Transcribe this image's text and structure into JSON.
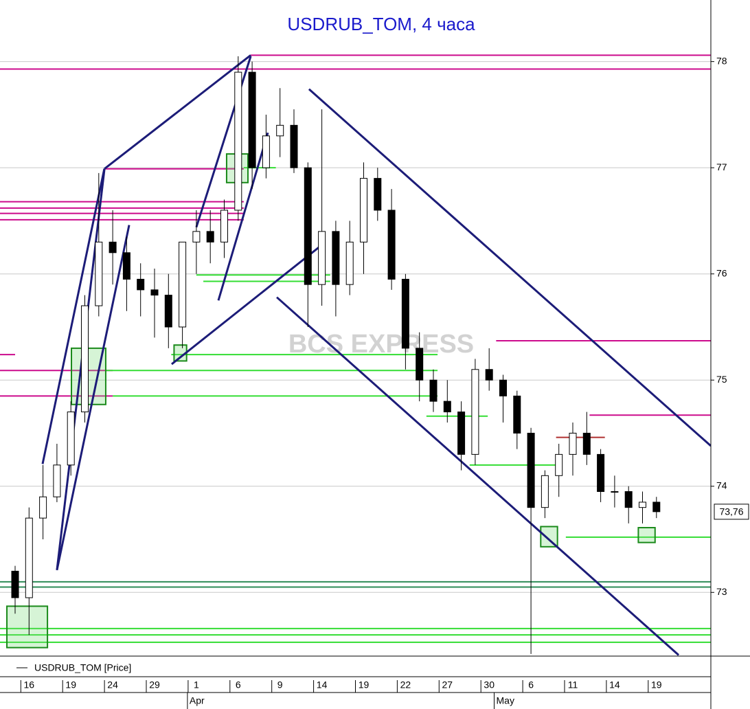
{
  "chart_data": {
    "type": "candlestick",
    "title": "USDRUB_TOM, 4 часа",
    "watermark": "BCS EXPRESS",
    "categories": [
      null,
      "16",
      null,
      null,
      "19",
      null,
      null,
      "24",
      null,
      null,
      "29",
      null,
      null,
      "1",
      null,
      null,
      "6",
      null,
      null,
      "9",
      null,
      null,
      "14",
      null,
      null,
      "19",
      null,
      null,
      "22",
      null,
      null,
      "27",
      null,
      null,
      "30",
      null,
      null,
      "6",
      null,
      null,
      "11",
      null,
      null,
      "14",
      null,
      null,
      "19"
    ],
    "month_categories": [
      null,
      null,
      null,
      null,
      null,
      null,
      null,
      null,
      null,
      null,
      null,
      null,
      null,
      "Apr",
      null,
      null,
      null,
      null,
      null,
      null,
      null,
      null,
      null,
      null,
      null,
      null,
      null,
      null,
      null,
      null,
      null,
      null,
      null,
      null,
      null,
      "May",
      null,
      null,
      null,
      null,
      null,
      null,
      null,
      null,
      null,
      null,
      null
    ],
    "series": [
      {
        "name": "USDRUB_TOM [Price]",
        "up_color": "#ffffff",
        "down_color": "#000000",
        "open": [
          73.2,
          72.95,
          73.7,
          73.9,
          74.2,
          74.7,
          75.7,
          76.3,
          76.2,
          75.95,
          75.85,
          75.8,
          75.5,
          76.3,
          76.4,
          76.3,
          76.6,
          77.9,
          77.0,
          77.3,
          77.4,
          77.0,
          75.9,
          76.4,
          75.9,
          76.3,
          76.9,
          76.6,
          75.95,
          75.3,
          75.0,
          74.8,
          74.7,
          74.3,
          75.1,
          75.0,
          74.85,
          74.5,
          73.8,
          74.1,
          74.3,
          74.5,
          74.3,
          73.95,
          73.95,
          73.8,
          73.85
        ],
        "high": [
          73.25,
          73.8,
          74.2,
          74.4,
          74.8,
          75.8,
          76.95,
          76.6,
          76.35,
          76.1,
          76.05,
          76.0,
          76.3,
          76.6,
          76.6,
          76.7,
          78.05,
          78.0,
          77.5,
          77.75,
          77.55,
          77.05,
          77.55,
          76.5,
          76.5,
          77.05,
          77.0,
          76.8,
          76.0,
          75.45,
          75.1,
          75.0,
          74.8,
          75.2,
          75.3,
          75.05,
          74.9,
          74.55,
          74.15,
          74.4,
          74.6,
          74.7,
          74.35,
          74.1,
          74.0,
          73.95,
          73.9
        ],
        "low": [
          72.8,
          72.6,
          73.5,
          73.85,
          74.1,
          74.6,
          75.6,
          75.9,
          75.65,
          75.6,
          75.4,
          75.3,
          75.3,
          76.0,
          76.1,
          76.15,
          76.5,
          76.8,
          76.9,
          77.1,
          76.95,
          75.5,
          75.7,
          75.6,
          75.8,
          76.0,
          76.5,
          75.85,
          75.1,
          74.8,
          74.7,
          74.6,
          74.15,
          74.2,
          74.9,
          74.6,
          74.35,
          72.42,
          73.7,
          73.9,
          74.1,
          74.2,
          73.85,
          73.8,
          73.65,
          73.65,
          73.7
        ],
        "close": [
          72.95,
          73.7,
          73.9,
          74.2,
          74.7,
          75.7,
          76.3,
          76.2,
          75.95,
          75.85,
          75.8,
          75.5,
          76.3,
          76.4,
          76.3,
          76.6,
          77.9,
          77.0,
          77.3,
          77.4,
          77.0,
          75.9,
          76.4,
          75.9,
          76.3,
          76.9,
          76.6,
          75.95,
          75.3,
          75.0,
          74.8,
          74.7,
          74.3,
          75.1,
          75.0,
          74.85,
          74.5,
          73.8,
          74.1,
          74.3,
          74.5,
          74.3,
          73.95,
          73.95,
          73.8,
          73.85,
          73.76
        ]
      }
    ],
    "last_price": {
      "value": 73.76,
      "label": "73,76"
    },
    "ylim": [
      72.4,
      78.58
    ],
    "yticks": [
      73,
      74,
      75,
      76,
      77,
      78
    ],
    "grid": true,
    "hlines": [
      {
        "value": 78.06,
        "from": 16.9,
        "to": 52,
        "color": "#cc0a8c"
      },
      {
        "value": 77.93,
        "from": -2,
        "to": 52,
        "color": "#cc0a8c"
      },
      {
        "value": 76.99,
        "from": 6.4,
        "to": 16.4,
        "color": "#cc0a8c"
      },
      {
        "value": 76.68,
        "from": -2,
        "to": 16.4,
        "color": "#cc0a8c"
      },
      {
        "value": 76.62,
        "from": -2,
        "to": 16.4,
        "color": "#cc0a8c"
      },
      {
        "value": 76.57,
        "from": -2,
        "to": 16.4,
        "color": "#cc0a8c"
      },
      {
        "value": 76.51,
        "from": -2,
        "to": 16.4,
        "color": "#cc0a8c"
      },
      {
        "value": 75.24,
        "from": -2,
        "to": 0,
        "color": "#cc0a8c"
      },
      {
        "value": 75.24,
        "from": 11.2,
        "to": 30.3,
        "color": "#33dd33"
      },
      {
        "value": 75.09,
        "from": -2,
        "to": 7,
        "color": "#cc0a8c"
      },
      {
        "value": 75.09,
        "from": 6.55,
        "to": 30.3,
        "color": "#33dd33"
      },
      {
        "value": 74.85,
        "from": -2,
        "to": 7,
        "color": "#cc0a8c"
      },
      {
        "value": 74.85,
        "from": 7,
        "to": 30.3,
        "color": "#33dd33"
      },
      {
        "value": 75.37,
        "from": 34.5,
        "to": 52,
        "color": "#cc0a8c"
      },
      {
        "value": 74.67,
        "from": 41.2,
        "to": 52,
        "color": "#cc0a8c"
      },
      {
        "value": 74.46,
        "from": 38.8,
        "to": 42.3,
        "color": "#b03030"
      },
      {
        "value": 75.99,
        "from": 13.0,
        "to": 22.6,
        "color": "#33dd33"
      },
      {
        "value": 75.93,
        "from": 13.5,
        "to": 22.6,
        "color": "#33dd33"
      },
      {
        "value": 77.0,
        "from": 16.4,
        "to": 18.7,
        "color": "#33dd33"
      },
      {
        "value": 74.66,
        "from": 29.5,
        "to": 33.9,
        "color": "#33dd33"
      },
      {
        "value": 74.2,
        "from": 32.6,
        "to": 38.9,
        "color": "#33dd33"
      },
      {
        "value": 73.52,
        "from": 39.5,
        "to": 52,
        "color": "#33dd33"
      },
      {
        "value": 73.1,
        "from": -2,
        "to": 52,
        "color": "#2e8b57"
      },
      {
        "value": 73.05,
        "from": -2,
        "to": 52,
        "color": "#2e8b57"
      },
      {
        "value": 72.66,
        "from": -2,
        "to": 52,
        "color": "#33dd33"
      },
      {
        "value": 72.6,
        "from": -2,
        "to": 52,
        "color": "#33dd33"
      },
      {
        "value": 72.53,
        "from": -2,
        "to": 52,
        "color": "#33dd33"
      }
    ],
    "trendlines": [
      {
        "x1": 3.0,
        "y1": 73.21,
        "x2": 6.41,
        "y2": 76.99
      },
      {
        "x1": 6.41,
        "y1": 76.99,
        "x2": 16.9,
        "y2": 78.06
      },
      {
        "x1": 1.97,
        "y1": 74.21,
        "x2": 6.4,
        "y2": 76.99
      },
      {
        "x1": 3.0,
        "y1": 73.21,
        "x2": 8.18,
        "y2": 76.46
      },
      {
        "x1": 13.0,
        "y1": 76.44,
        "x2": 16.9,
        "y2": 78.05
      },
      {
        "x1": 14.58,
        "y1": 75.75,
        "x2": 18.13,
        "y2": 77.33
      },
      {
        "x1": 11.23,
        "y1": 75.15,
        "x2": 22.07,
        "y2": 76.28
      },
      {
        "x1": 21.08,
        "y1": 77.74,
        "x2": 49.9,
        "y2": 74.38
      },
      {
        "x1": 18.77,
        "y1": 75.78,
        "x2": 47.59,
        "y2": 72.41
      }
    ],
    "boxes": [
      {
        "x1": -0.59,
        "x2": 2.32,
        "y1": 72.87,
        "y2": 72.48
      },
      {
        "x1": 4.04,
        "x2": 6.5,
        "y1": 75.3,
        "y2": 74.77
      },
      {
        "x1": 15.17,
        "x2": 16.7,
        "y1": 77.13,
        "y2": 76.86
      },
      {
        "x1": 11.4,
        "x2": 12.3,
        "y1": 75.33,
        "y2": 75.18
      },
      {
        "x1": 37.7,
        "x2": 38.9,
        "y1": 73.62,
        "y2": 73.43
      },
      {
        "x1": 44.7,
        "x2": 45.9,
        "y1": 73.61,
        "y2": 73.47
      }
    ]
  }
}
